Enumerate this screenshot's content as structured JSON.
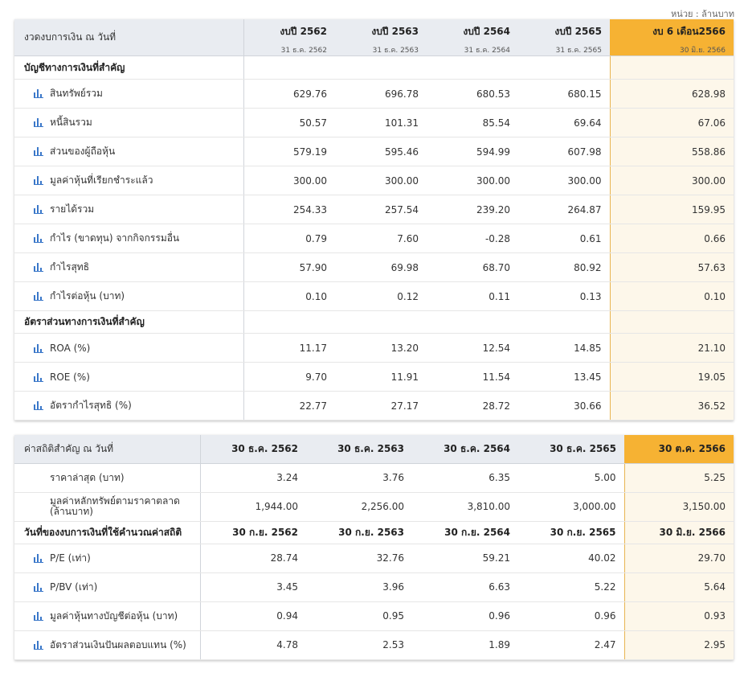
{
  "unit_note": "หน่วย : ล้านบาท",
  "t1": {
    "header_label": "งวดงบการเงิน ณ วันที่",
    "columns": [
      {
        "title": "งบปี 2562",
        "sub": "31 ธ.ค. 2562"
      },
      {
        "title": "งบปี 2563",
        "sub": "31 ธ.ค. 2563"
      },
      {
        "title": "งบปี 2564",
        "sub": "31 ธ.ค. 2564"
      },
      {
        "title": "งบปี 2565",
        "sub": "31 ธ.ค. 2565"
      },
      {
        "title": "งบ 6 เดือน2566",
        "sub": "30 มิ.ย. 2566"
      }
    ],
    "section1": "บัญชีทางการเงินที่สำคัญ",
    "section2": "อัตราส่วนทางการเงินที่สำคัญ",
    "rows": [
      {
        "label": "สินทรัพย์รวม",
        "values": [
          "629.76",
          "696.78",
          "680.53",
          "680.15",
          "628.98"
        ]
      },
      {
        "label": "หนี้สินรวม",
        "values": [
          "50.57",
          "101.31",
          "85.54",
          "69.64",
          "67.06"
        ]
      },
      {
        "label": "ส่วนของผู้ถือหุ้น",
        "values": [
          "579.19",
          "595.46",
          "594.99",
          "607.98",
          "558.86"
        ]
      },
      {
        "label": "มูลค่าหุ้นที่เรียกชำระแล้ว",
        "values": [
          "300.00",
          "300.00",
          "300.00",
          "300.00",
          "300.00"
        ]
      },
      {
        "label": "รายได้รวม",
        "values": [
          "254.33",
          "257.54",
          "239.20",
          "264.87",
          "159.95"
        ]
      },
      {
        "label": "กำไร (ขาดทุน) จากกิจกรรมอื่น",
        "values": [
          "0.79",
          "7.60",
          "-0.28",
          "0.61",
          "0.66"
        ]
      },
      {
        "label": "กำไรสุทธิ",
        "values": [
          "57.90",
          "69.98",
          "68.70",
          "80.92",
          "57.63"
        ]
      },
      {
        "label": "กำไรต่อหุ้น (บาท)",
        "values": [
          "0.10",
          "0.12",
          "0.11",
          "0.13",
          "0.10"
        ]
      },
      {
        "label": "ROA (%)",
        "values": [
          "11.17",
          "13.20",
          "12.54",
          "14.85",
          "21.10"
        ]
      },
      {
        "label": "ROE (%)",
        "values": [
          "9.70",
          "11.91",
          "11.54",
          "13.45",
          "19.05"
        ]
      },
      {
        "label": "อัตรากำไรสุทธิ (%)",
        "values": [
          "22.77",
          "27.17",
          "28.72",
          "30.66",
          "36.52"
        ]
      }
    ]
  },
  "t2": {
    "header_label": "ค่าสถิติสำคัญ ณ วันที่",
    "columns": [
      "30 ธ.ค. 2562",
      "30 ธ.ค. 2563",
      "30 ธ.ค. 2564",
      "30 ธ.ค. 2565",
      "30 ต.ค. 2566"
    ],
    "rows_a": [
      {
        "label": "ราคาล่าสุด (บาท)",
        "values": [
          "3.24",
          "3.76",
          "6.35",
          "5.00",
          "5.25"
        ]
      },
      {
        "label": "มูลค่าหลักทรัพย์ตามราคาตลาด (ล้านบาท)",
        "values": [
          "1,944.00",
          "2,256.00",
          "3,810.00",
          "3,000.00",
          "3,150.00"
        ]
      }
    ],
    "section": {
      "label": "วันที่ของงบการเงินที่ใช้คำนวณค่าสถิติ",
      "values": [
        "30 ก.ย. 2562",
        "30 ก.ย. 2563",
        "30 ก.ย. 2564",
        "30 ก.ย. 2565",
        "30 มิ.ย. 2566"
      ]
    },
    "rows_b": [
      {
        "label": "P/E (เท่า)",
        "values": [
          "28.74",
          "32.76",
          "59.21",
          "40.02",
          "29.70"
        ]
      },
      {
        "label": "P/BV (เท่า)",
        "values": [
          "3.45",
          "3.96",
          "6.63",
          "5.22",
          "5.64"
        ]
      },
      {
        "label": "มูลค่าหุ้นทางบัญชีต่อหุ้น (บาท)",
        "values": [
          "0.94",
          "0.95",
          "0.96",
          "0.96",
          "0.93"
        ]
      },
      {
        "label": "อัตราส่วนเงินปันผลตอบแทน (%)",
        "values": [
          "4.78",
          "2.53",
          "1.89",
          "2.47",
          "2.95"
        ]
      }
    ]
  }
}
